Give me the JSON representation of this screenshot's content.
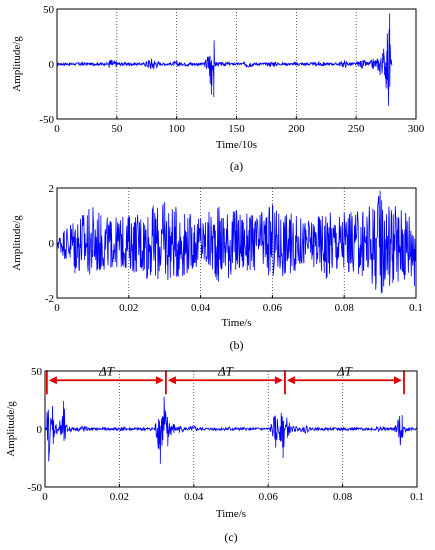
{
  "colors": {
    "signal": "#0000ff",
    "annotation": "#e00000",
    "axis": "#000000",
    "grid": "#000000"
  },
  "chart_data": [
    {
      "id": "a",
      "type": "line",
      "panel_label": "(a)",
      "xlabel": "Time/10s",
      "ylabel": "Amplitude/g",
      "xlim": [
        0,
        300
      ],
      "ylim": [
        -50,
        50
      ],
      "xticks": [
        "0",
        "50",
        "100",
        "150",
        "200",
        "250",
        "300"
      ],
      "yticks": [
        "-50",
        "0",
        "50"
      ],
      "grid": "vertical dotted",
      "series": [
        {
          "color": "#0000ff",
          "x": [
            0,
            20,
            42,
            45,
            48,
            60,
            78,
            80,
            82,
            100,
            110,
            128,
            129,
            130,
            131,
            132,
            140,
            160,
            180,
            200,
            220,
            240,
            255,
            265,
            270,
            273,
            275,
            276,
            277,
            278,
            279,
            280
          ],
          "y": [
            0,
            1,
            0,
            5,
            -3,
            1,
            -6,
            7,
            -4,
            2,
            -1,
            -18,
            -28,
            6,
            -30,
            2,
            1,
            -3,
            2,
            1,
            -2,
            3,
            -4,
            6,
            -10,
            14,
            -22,
            28,
            -38,
            46,
            -5,
            0
          ]
        }
      ]
    },
    {
      "id": "b",
      "type": "line",
      "panel_label": "(b)",
      "xlabel": "Time/s",
      "ylabel": "Amplitude/g",
      "xlim": [
        0,
        0.1
      ],
      "ylim": [
        -2,
        2
      ],
      "xticks": [
        "0",
        "0.02",
        "0.04",
        "0.06",
        "0.08",
        "0.1"
      ],
      "yticks": [
        "-2",
        "0",
        "2"
      ],
      "grid": "vertical dotted",
      "series": [
        {
          "color": "#0000ff",
          "x": [
            0,
            0.005,
            0.01,
            0.015,
            0.02,
            0.025,
            0.03,
            0.035,
            0.04,
            0.045,
            0.05,
            0.055,
            0.06,
            0.065,
            0.07,
            0.075,
            0.08,
            0.085,
            0.09,
            0.095,
            0.1
          ],
          "y": [
            0.2,
            -1.1,
            1.3,
            -0.9,
            1.0,
            -1.3,
            1.5,
            -1.2,
            0.9,
            -1.4,
            1.2,
            -1.0,
            1.4,
            -1.1,
            0.8,
            -1.3,
            1.1,
            -1.2,
            1.9,
            -1.4,
            1.6
          ]
        }
      ]
    },
    {
      "id": "c",
      "type": "line",
      "panel_label": "(c)",
      "xlabel": "Time/s",
      "ylabel": "Amplitude/g",
      "xlim": [
        0,
        0.1
      ],
      "ylim": [
        -50,
        50
      ],
      "xticks": [
        "0",
        "0.02",
        "0.04",
        "0.06",
        "0.08",
        "0.1"
      ],
      "yticks": [
        "-50",
        "0",
        "50"
      ],
      "grid": "vertical dotted",
      "series": [
        {
          "color": "#0000ff",
          "x": [
            0,
            0.001,
            0.002,
            0.003,
            0.005,
            0.006,
            0.01,
            0.02,
            0.031,
            0.032,
            0.033,
            0.034,
            0.036,
            0.04,
            0.05,
            0.062,
            0.0635,
            0.064,
            0.065,
            0.067,
            0.07,
            0.08,
            0.09,
            0.0955,
            0.096,
            0.0965,
            0.1
          ],
          "y": [
            0,
            -28,
            20,
            -5,
            24,
            -4,
            3,
            1,
            -30,
            28,
            -15,
            8,
            -3,
            2,
            1,
            -16,
            14,
            -25,
            10,
            -2,
            3,
            1,
            2,
            -14,
            12,
            3,
            0
          ]
        }
      ],
      "annotations": {
        "label": "ΔT",
        "period_markers_x": [
          0.0005,
          0.0325,
          0.0645,
          0.0965
        ],
        "arrow_y": 42,
        "color": "#e00000"
      }
    }
  ]
}
